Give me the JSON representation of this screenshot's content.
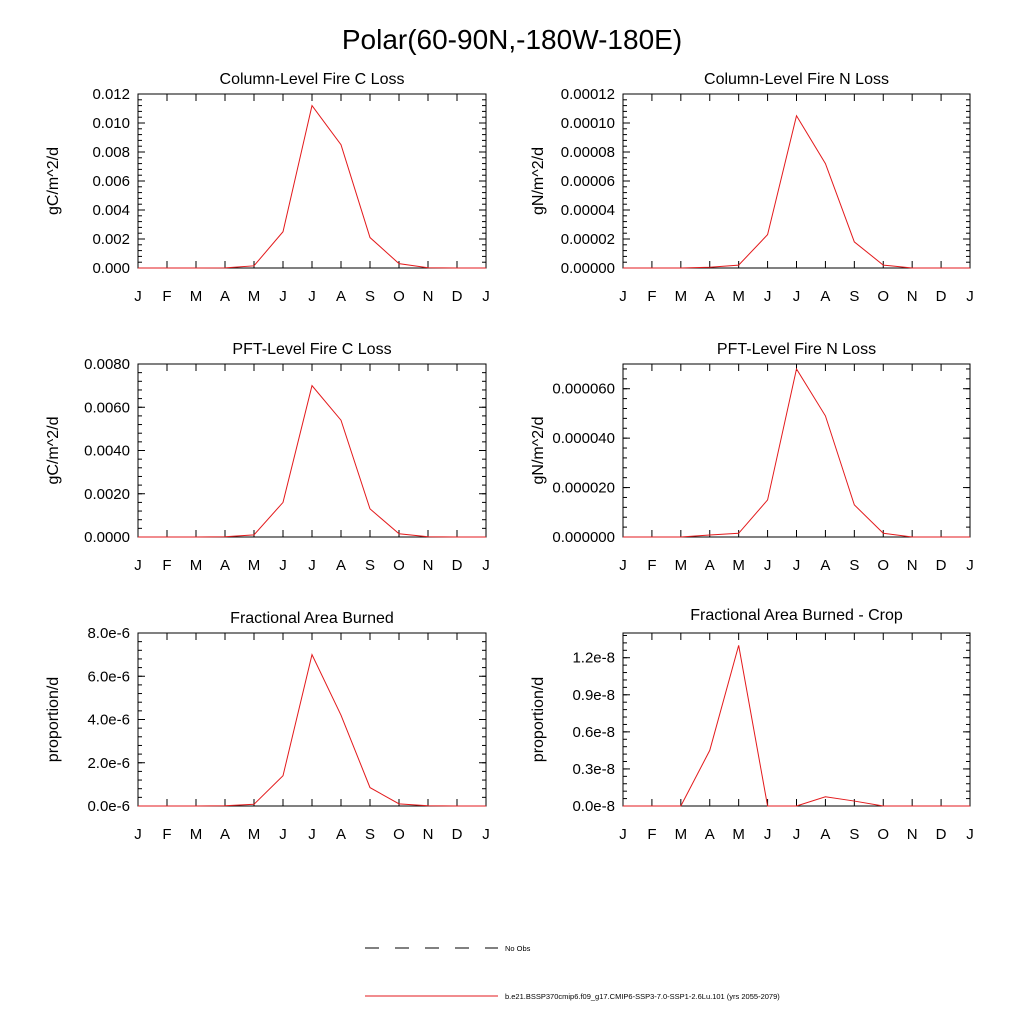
{
  "figure": {
    "title": "Polar(60-90N,-180W-180E)"
  },
  "legend": {
    "items": [
      {
        "label": "No Obs",
        "style": "dashed",
        "color": "#000000"
      },
      {
        "label": "b.e21.BSSP370cmip6.f09_g17.CMIP6-SSP3-7.0-SSP1-2.6Lu.101 (yrs 2055-2079)",
        "style": "solid",
        "color": "#e31a1c"
      }
    ]
  },
  "chart_data": [
    {
      "type": "line",
      "title": "Column-Level Fire C Loss",
      "ylabel": "gC/m^2/d",
      "x": [
        "J",
        "F",
        "M",
        "A",
        "M",
        "J",
        "J",
        "A",
        "S",
        "O",
        "N",
        "D",
        "J"
      ],
      "ylim": [
        0,
        0.012
      ],
      "yticks": [
        0,
        0.002,
        0.004,
        0.006,
        0.008,
        0.01,
        0.012
      ],
      "ytick_labels": [
        "0.000",
        "0.002",
        "0.004",
        "0.006",
        "0.008",
        "0.010",
        "0.012"
      ],
      "series": [
        {
          "color": "#e31a1c",
          "values": [
            0,
            0,
            0,
            1e-05,
            0.00015,
            0.0025,
            0.0112,
            0.0085,
            0.0021,
            0.0003,
            2e-05,
            0,
            0
          ]
        }
      ]
    },
    {
      "type": "line",
      "title": "Column-Level Fire N Loss",
      "ylabel": "gN/m^2/d",
      "x": [
        "J",
        "F",
        "M",
        "A",
        "M",
        "J",
        "J",
        "A",
        "S",
        "O",
        "N",
        "D",
        "J"
      ],
      "ylim": [
        0,
        0.00012
      ],
      "yticks": [
        0,
        2e-05,
        4e-05,
        6e-05,
        8e-05,
        0.0001,
        0.00012
      ],
      "ytick_labels": [
        "0.00000",
        "0.00002",
        "0.00004",
        "0.00006",
        "0.00008",
        "0.00010",
        "0.00012"
      ],
      "series": [
        {
          "color": "#e31a1c",
          "values": [
            0,
            0,
            0,
            5e-07,
            2e-06,
            2.3e-05,
            0.000105,
            7.2e-05,
            1.8e-05,
            2e-06,
            0,
            0,
            0
          ]
        }
      ]
    },
    {
      "type": "line",
      "title": "PFT-Level Fire C Loss",
      "ylabel": "gC/m^2/d",
      "x": [
        "J",
        "F",
        "M",
        "A",
        "M",
        "J",
        "J",
        "A",
        "S",
        "O",
        "N",
        "D",
        "J"
      ],
      "ylim": [
        0,
        0.008
      ],
      "yticks": [
        0,
        0.002,
        0.004,
        0.006,
        0.008
      ],
      "ytick_labels": [
        "0.0000",
        "0.0020",
        "0.0040",
        "0.0060",
        "0.0080"
      ],
      "series": [
        {
          "color": "#e31a1c",
          "values": [
            0,
            0,
            0,
            1e-05,
            0.0001,
            0.0016,
            0.007,
            0.0054,
            0.0013,
            0.00015,
            1e-05,
            0,
            0
          ]
        }
      ]
    },
    {
      "type": "line",
      "title": "PFT-Level Fire N Loss",
      "ylabel": "gN/m^2/d",
      "x": [
        "J",
        "F",
        "M",
        "A",
        "M",
        "J",
        "J",
        "A",
        "S",
        "O",
        "N",
        "D",
        "J"
      ],
      "ylim": [
        0,
        7e-05
      ],
      "yticks": [
        0,
        2e-05,
        4e-05,
        6e-05
      ],
      "ytick_labels": [
        "0.000000",
        "0.000020",
        "0.000040",
        "0.000060"
      ],
      "series": [
        {
          "color": "#e31a1c",
          "values": [
            0,
            0,
            0,
            8e-07,
            1.5e-06,
            1.5e-05,
            6.8e-05,
            4.9e-05,
            1.3e-05,
            1.5e-06,
            0,
            0,
            0
          ]
        }
      ]
    },
    {
      "type": "line",
      "title": "Fractional Area Burned",
      "ylabel": "proportion/d",
      "x": [
        "J",
        "F",
        "M",
        "A",
        "M",
        "J",
        "J",
        "A",
        "S",
        "O",
        "N",
        "D",
        "J"
      ],
      "ylim": [
        0,
        8e-06
      ],
      "yticks": [
        0,
        2e-06,
        4e-06,
        6e-06,
        8e-06
      ],
      "ytick_labels": [
        "0.0e-6",
        "2.0e-6",
        "4.0e-6",
        "6.0e-6",
        "8.0e-6"
      ],
      "series": [
        {
          "color": "#e31a1c",
          "values": [
            0,
            0,
            0,
            1e-08,
            8e-08,
            1.4e-06,
            7e-06,
            4.2e-06,
            8.5e-07,
            1e-07,
            1e-08,
            0,
            0
          ]
        }
      ]
    },
    {
      "type": "line",
      "title": "Fractional Area Burned - Crop",
      "ylabel": "proportion/d",
      "x": [
        "J",
        "F",
        "M",
        "A",
        "M",
        "J",
        "J",
        "A",
        "S",
        "O",
        "N",
        "D",
        "J"
      ],
      "ylim": [
        0,
        1.4e-08
      ],
      "yticks": [
        0,
        3e-09,
        6e-09,
        9e-09,
        1.2e-08
      ],
      "ytick_labels": [
        "0.0e-8",
        "0.3e-8",
        "0.6e-8",
        "0.9e-8",
        "1.2e-8"
      ],
      "series": [
        {
          "color": "#e31a1c",
          "values": [
            0,
            0,
            0,
            4.5e-09,
            1.3e-08,
            0,
            0,
            7.5e-10,
            4e-10,
            0,
            0,
            0,
            0
          ]
        }
      ]
    }
  ]
}
